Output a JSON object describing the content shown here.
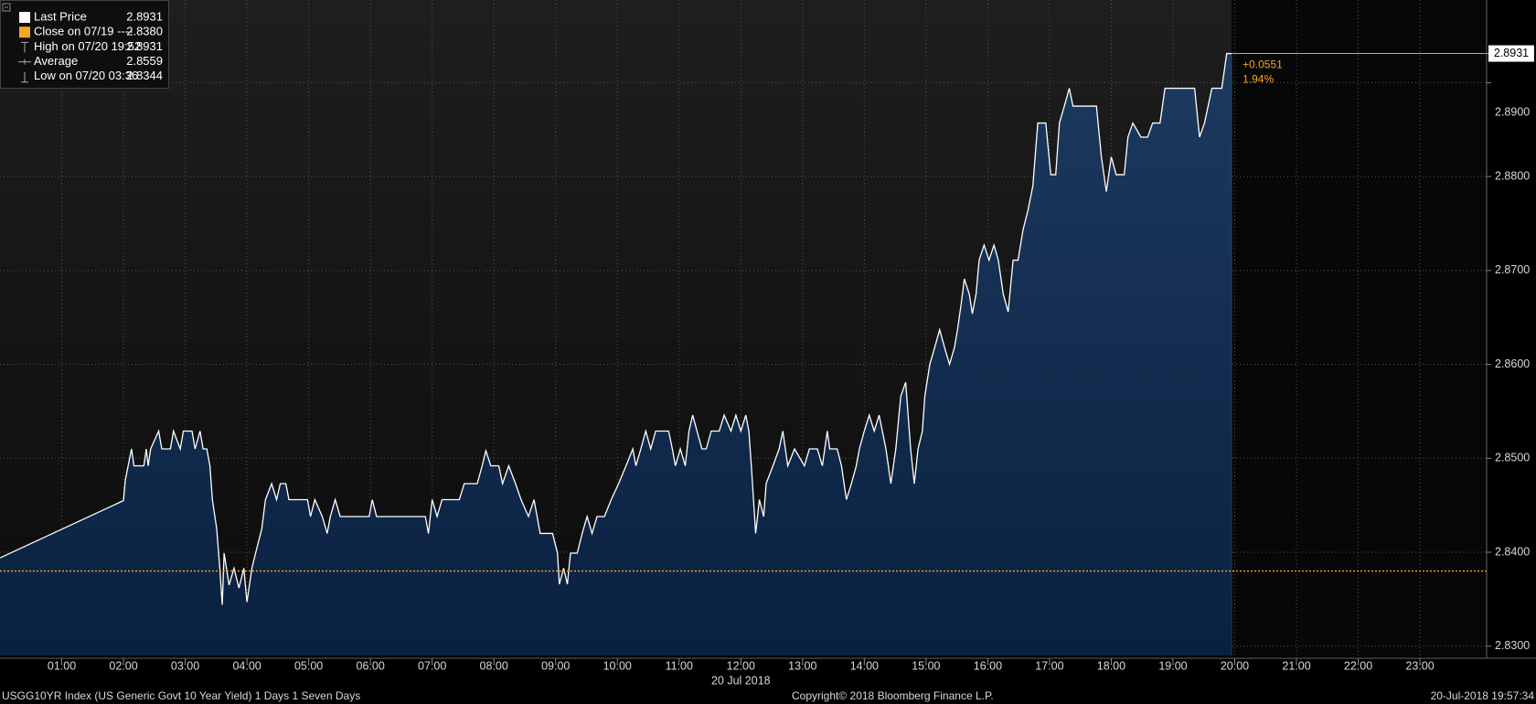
{
  "chart_data": {
    "type": "area",
    "series": [
      {
        "name": "Last Price",
        "color": "#ffffff",
        "x": [
          0,
          2.0,
          2.03,
          2.13,
          2.17,
          2.33,
          2.37,
          2.4,
          2.44,
          2.57,
          2.62,
          2.76,
          2.81,
          2.92,
          2.97,
          3.11,
          3.16,
          3.24,
          3.29,
          3.35,
          3.4,
          3.44,
          3.51,
          3.56,
          3.6,
          3.63,
          3.71,
          3.79,
          3.87,
          3.95,
          4.0,
          4.08,
          4.14,
          4.24,
          4.3,
          4.4,
          4.48,
          4.54,
          4.63,
          4.68,
          4.98,
          5.03,
          5.1,
          5.22,
          5.3,
          5.35,
          5.43,
          5.51,
          5.98,
          6.03,
          6.1,
          6.89,
          6.94,
          7.0,
          7.08,
          7.16,
          7.44,
          7.52,
          7.73,
          7.81,
          7.87,
          7.95,
          8.08,
          8.14,
          8.24,
          8.35,
          8.44,
          8.56,
          8.65,
          8.75,
          8.95,
          9.03,
          9.06,
          9.13,
          9.19,
          9.24,
          9.35,
          9.43,
          9.51,
          9.59,
          9.67,
          9.79,
          9.9,
          10.02,
          10.14,
          10.25,
          10.3,
          10.38,
          10.46,
          10.54,
          10.62,
          10.83,
          10.89,
          10.94,
          11.02,
          11.1,
          11.16,
          11.22,
          11.29,
          11.37,
          11.44,
          11.52,
          11.65,
          11.73,
          11.84,
          11.92,
          12.0,
          12.08,
          12.13,
          12.17,
          12.24,
          12.3,
          12.37,
          12.41,
          12.52,
          12.62,
          12.68,
          12.76,
          12.87,
          13.03,
          13.11,
          13.24,
          13.32,
          13.4,
          13.44,
          13.56,
          13.63,
          13.71,
          13.79,
          13.87,
          13.92,
          14.0,
          14.08,
          14.16,
          14.24,
          14.35,
          14.43,
          14.51,
          14.59,
          14.67,
          14.75,
          14.81,
          14.87,
          14.94,
          14.98,
          15.06,
          15.14,
          15.22,
          15.3,
          15.38,
          15.46,
          15.51,
          15.57,
          15.62,
          15.7,
          15.75,
          15.81,
          15.86,
          15.94,
          16.02,
          16.1,
          16.17,
          16.25,
          16.33,
          16.41,
          16.49,
          16.57,
          16.65,
          16.73,
          16.81,
          16.94,
          17.02,
          17.1,
          17.16,
          17.24,
          17.32,
          17.38,
          17.76,
          17.84,
          17.92,
          18.0,
          18.08,
          18.21,
          18.27,
          18.35,
          18.48,
          18.59,
          18.67,
          18.79,
          18.87,
          19.35,
          19.43,
          19.51,
          19.63,
          19.79,
          19.87,
          19.95
        ],
        "values": [
          2.8394,
          2.8455,
          2.8477,
          2.851,
          2.8492,
          2.8492,
          2.851,
          2.8492,
          2.851,
          2.8529,
          2.851,
          2.851,
          2.8529,
          2.851,
          2.8529,
          2.8529,
          2.851,
          2.8529,
          2.851,
          2.851,
          2.8492,
          2.8456,
          2.8425,
          2.8383,
          2.8344,
          2.8399,
          2.8365,
          2.8383,
          2.8362,
          2.8383,
          2.8347,
          2.8383,
          2.8399,
          2.8425,
          2.8456,
          2.8473,
          2.8456,
          2.8473,
          2.8473,
          2.8456,
          2.8456,
          2.8438,
          2.8456,
          2.8438,
          2.842,
          2.8438,
          2.8456,
          2.8438,
          2.8438,
          2.8456,
          2.8438,
          2.8438,
          2.842,
          2.8456,
          2.8438,
          2.8456,
          2.8456,
          2.8473,
          2.8473,
          2.8492,
          2.8508,
          2.8492,
          2.8492,
          2.8473,
          2.8492,
          2.8473,
          2.8456,
          2.8438,
          2.8456,
          2.842,
          2.842,
          2.8399,
          2.8366,
          2.8383,
          2.8366,
          2.8399,
          2.8399,
          2.842,
          2.8438,
          2.842,
          2.8438,
          2.8438,
          2.8456,
          2.8473,
          2.8492,
          2.851,
          2.8492,
          2.851,
          2.8529,
          2.851,
          2.8529,
          2.8529,
          2.851,
          2.8492,
          2.851,
          2.8492,
          2.8529,
          2.8546,
          2.8529,
          2.851,
          2.851,
          2.8529,
          2.8529,
          2.8546,
          2.8529,
          2.8546,
          2.8529,
          2.8546,
          2.8529,
          2.8492,
          2.842,
          2.8456,
          2.8438,
          2.8473,
          2.8492,
          2.851,
          2.8529,
          2.8492,
          2.851,
          2.8492,
          2.851,
          2.851,
          2.8492,
          2.8529,
          2.851,
          2.851,
          2.8492,
          2.8456,
          2.8473,
          2.8492,
          2.851,
          2.8529,
          2.8546,
          2.8529,
          2.8546,
          2.851,
          2.8473,
          2.851,
          2.8566,
          2.8581,
          2.851,
          2.8473,
          2.851,
          2.8529,
          2.8566,
          2.86,
          2.8618,
          2.8637,
          2.8618,
          2.86,
          2.8618,
          2.8637,
          2.8665,
          2.8691,
          2.8675,
          2.8654,
          2.8675,
          2.8711,
          2.8727,
          2.8711,
          2.8727,
          2.8711,
          2.8675,
          2.8656,
          2.8711,
          2.8711,
          2.8743,
          2.8764,
          2.879,
          2.8857,
          2.8857,
          2.8802,
          2.8802,
          2.8857,
          2.8875,
          2.8894,
          2.8875,
          2.8875,
          2.8821,
          2.8784,
          2.8821,
          2.8802,
          2.8802,
          2.8842,
          2.8857,
          2.8842,
          2.8842,
          2.8857,
          2.8857,
          2.8894,
          2.8894,
          2.8842,
          2.8857,
          2.8894,
          2.8894,
          2.8931,
          2.8931
        ]
      }
    ],
    "legend": [
      {
        "name": "Last Price",
        "value": 2.8931
      },
      {
        "name": "Close on 07/19 ----",
        "value": 2.838,
        "value_label": "2.8380"
      },
      {
        "name": "High on 07/20 19:52",
        "value": 2.8931
      },
      {
        "name": "Average",
        "value": 2.8559
      },
      {
        "name": "Low on 07/20 03:36",
        "value": 2.8344
      }
    ],
    "close_color": "#f5a623",
    "change": {
      "value": 0.0551,
      "label": "+0.0551"
    },
    "change_pct": {
      "value": 1.94,
      "label": "1.94%"
    },
    "xlim": [
      0,
      24.08
    ],
    "xticks": [
      {
        "value": 1,
        "label": "01:00"
      },
      {
        "value": 2,
        "label": "02:00"
      },
      {
        "value": 3,
        "label": "03:00"
      },
      {
        "value": 4,
        "label": "04:00"
      },
      {
        "value": 5,
        "label": "05:00"
      },
      {
        "value": 6,
        "label": "06:00"
      },
      {
        "value": 7,
        "label": "07:00"
      },
      {
        "value": 8,
        "label": "08:00"
      },
      {
        "value": 9,
        "label": "09:00"
      },
      {
        "value": 10,
        "label": "10:00"
      },
      {
        "value": 11,
        "label": "11:00"
      },
      {
        "value": 12,
        "label": "12:00"
      },
      {
        "value": 13,
        "label": "13:00"
      },
      {
        "value": 14,
        "label": "14:00"
      },
      {
        "value": 15,
        "label": "15:00"
      },
      {
        "value": 16,
        "label": "16:00"
      },
      {
        "value": 17,
        "label": "17:00"
      },
      {
        "value": 18,
        "label": "18:00"
      },
      {
        "value": 19,
        "label": "19:00"
      },
      {
        "value": 20,
        "label": "20:00"
      },
      {
        "value": 21,
        "label": "21:00"
      },
      {
        "value": 22,
        "label": "22:00"
      },
      {
        "value": 23,
        "label": "23:00"
      }
    ],
    "x_label": "20 Jul 2018",
    "ylim": [
      2.829,
      2.8988
    ],
    "yticks": [
      {
        "value": 2.83,
        "label": "2.8300"
      },
      {
        "value": 2.84,
        "label": "2.8400"
      },
      {
        "value": 2.85,
        "label": "2.8500"
      },
      {
        "value": 2.86,
        "label": "2.8600"
      },
      {
        "value": 2.87,
        "label": "2.8700"
      },
      {
        "value": 2.88,
        "label": "2.8800"
      },
      {
        "value": 2.89,
        "label": "2.8900"
      }
    ],
    "grid": true,
    "footer": {
      "left": "USGG10YR Index (US Generic Govt 10 Year Yield) 1 Days 1 Seven Days",
      "center": "Copyright© 2018 Bloomberg Finance L.P.",
      "right": "20-Jul-2018 19:57:34"
    }
  }
}
